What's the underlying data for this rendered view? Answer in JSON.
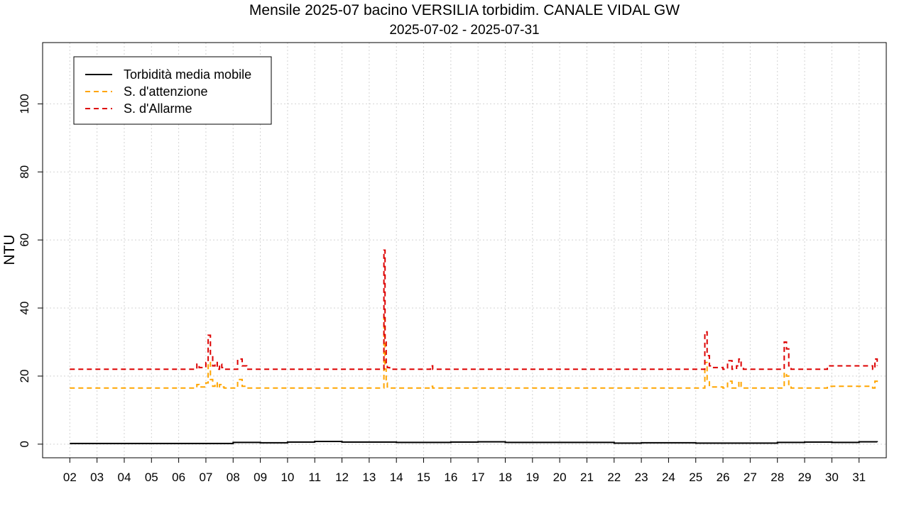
{
  "chart_data": {
    "type": "line",
    "title": "Mensile 2025-07 bacino VERSILIA torbidim. CANALE VIDAL GW",
    "subtitle": "2025-07-02 - 2025-07-31",
    "ylabel": "NTU",
    "xlabel": "",
    "ylim": [
      -4,
      118
    ],
    "xlim": [
      "2025-07-01",
      "2025-08-01"
    ],
    "grid": true,
    "legend_position": "top-left",
    "x_tick_labels": [
      "02",
      "03",
      "04",
      "05",
      "06",
      "07",
      "08",
      "09",
      "10",
      "11",
      "12",
      "13",
      "14",
      "15",
      "16",
      "17",
      "18",
      "19",
      "20",
      "21",
      "22",
      "23",
      "24",
      "25",
      "26",
      "27",
      "28",
      "29",
      "30",
      "31"
    ],
    "y_ticks": [
      0,
      20,
      40,
      60,
      80,
      100
    ],
    "y_tick_labels": [
      "0",
      "20",
      "40",
      "60",
      "80",
      "100"
    ],
    "series": [
      {
        "name": "Torbidità media mobile",
        "color": "#000000",
        "style": "solid",
        "x": [
          "2025-07-02",
          "2025-07-07",
          "2025-07-08",
          "2025-07-09",
          "2025-07-10",
          "2025-07-11",
          "2025-07-12",
          "2025-07-14",
          "2025-07-16",
          "2025-07-17",
          "2025-07-18",
          "2025-07-21",
          "2025-07-22",
          "2025-07-23",
          "2025-07-25",
          "2025-07-27",
          "2025-07-28",
          "2025-07-29",
          "2025-07-30",
          "2025-07-31",
          "2025-07-31T16:00"
        ],
        "values": [
          0.2,
          0.2,
          0.5,
          0.4,
          0.6,
          0.8,
          0.6,
          0.5,
          0.6,
          0.7,
          0.5,
          0.5,
          0.3,
          0.4,
          0.3,
          0.3,
          0.5,
          0.6,
          0.5,
          0.7,
          0.6
        ]
      },
      {
        "name": "S. d'attenzione",
        "color": "#FFA500",
        "style": "dashed",
        "x": [
          "2025-07-02",
          "2025-07-06T14:00",
          "2025-07-06T16:00",
          "2025-07-06T18:00",
          "2025-07-07",
          "2025-07-07T02:00",
          "2025-07-07T04:00",
          "2025-07-07T06:00",
          "2025-07-07T08:00",
          "2025-07-07T10:00",
          "2025-07-07T12:00",
          "2025-07-07T14:00",
          "2025-07-07T16:00",
          "2025-07-08",
          "2025-07-08T04:00",
          "2025-07-08T08:00",
          "2025-07-08T12:00",
          "2025-07-13T12:00",
          "2025-07-13T13:00",
          "2025-07-13T14:00",
          "2025-07-13T15:00",
          "2025-07-13T16:00",
          "2025-07-13T18:00",
          "2025-07-15T04:00",
          "2025-07-15T06:00",
          "2025-07-15T08:00",
          "2025-07-25T06:00",
          "2025-07-25T08:00",
          "2025-07-25T10:00",
          "2025-07-25T12:00",
          "2025-07-25T14:00",
          "2025-07-26",
          "2025-07-26T04:00",
          "2025-07-26T08:00",
          "2025-07-26T12:00",
          "2025-07-26T14:00",
          "2025-07-26T16:00",
          "2025-07-26T18:00",
          "2025-07-28T04:00",
          "2025-07-28T06:00",
          "2025-07-28T08:00",
          "2025-07-28T10:00",
          "2025-07-28T12:00",
          "2025-07-29T18:00",
          "2025-07-29T20:00",
          "2025-07-31T12:00",
          "2025-07-31T14:00",
          "2025-07-31T16:00"
        ],
        "values": [
          16.5,
          16.5,
          17.5,
          16.8,
          18,
          24,
          19,
          17,
          18,
          16.5,
          17.5,
          16.8,
          16.5,
          16.5,
          19,
          17,
          16.5,
          16.5,
          38,
          22,
          18,
          16.8,
          16.5,
          16.5,
          17,
          16.5,
          16.5,
          24,
          19,
          17,
          16.8,
          16.5,
          18.5,
          16.5,
          17,
          18.5,
          17,
          16.5,
          16.5,
          21,
          20,
          17,
          16.5,
          16.5,
          17,
          16.5,
          18.5,
          17.5
        ]
      },
      {
        "name": "S. d'Allarme",
        "color": "#DD0000",
        "style": "dashed",
        "x": [
          "2025-07-02",
          "2025-07-06T14:00",
          "2025-07-06T16:00",
          "2025-07-06T18:00",
          "2025-07-07",
          "2025-07-07T02:00",
          "2025-07-07T04:00",
          "2025-07-07T06:00",
          "2025-07-07T08:00",
          "2025-07-07T10:00",
          "2025-07-07T12:00",
          "2025-07-07T14:00",
          "2025-07-07T16:00",
          "2025-07-08",
          "2025-07-08T04:00",
          "2025-07-08T08:00",
          "2025-07-08T12:00",
          "2025-07-13T12:00",
          "2025-07-13T13:00",
          "2025-07-13T14:00",
          "2025-07-13T15:00",
          "2025-07-13T16:00",
          "2025-07-13T18:00",
          "2025-07-15T04:00",
          "2025-07-15T06:00",
          "2025-07-15T08:00",
          "2025-07-25T06:00",
          "2025-07-25T08:00",
          "2025-07-25T10:00",
          "2025-07-25T12:00",
          "2025-07-25T14:00",
          "2025-07-26",
          "2025-07-26T04:00",
          "2025-07-26T08:00",
          "2025-07-26T12:00",
          "2025-07-26T14:00",
          "2025-07-26T16:00",
          "2025-07-26T18:00",
          "2025-07-28T04:00",
          "2025-07-28T06:00",
          "2025-07-28T08:00",
          "2025-07-28T10:00",
          "2025-07-28T12:00",
          "2025-07-29T18:00",
          "2025-07-29T20:00",
          "2025-07-31T12:00",
          "2025-07-31T14:00",
          "2025-07-31T16:00"
        ],
        "values": [
          22,
          22,
          23.5,
          22.5,
          24,
          32,
          26,
          23,
          24,
          22,
          23.5,
          22.5,
          22,
          22,
          25,
          23,
          22,
          22,
          57,
          30,
          23.5,
          22.5,
          22,
          22,
          23,
          22,
          22,
          33,
          26,
          23,
          22.5,
          22,
          24.5,
          22,
          23,
          25,
          23,
          22,
          22,
          30,
          28,
          23,
          22,
          22,
          23,
          22,
          25,
          23
        ]
      }
    ]
  }
}
